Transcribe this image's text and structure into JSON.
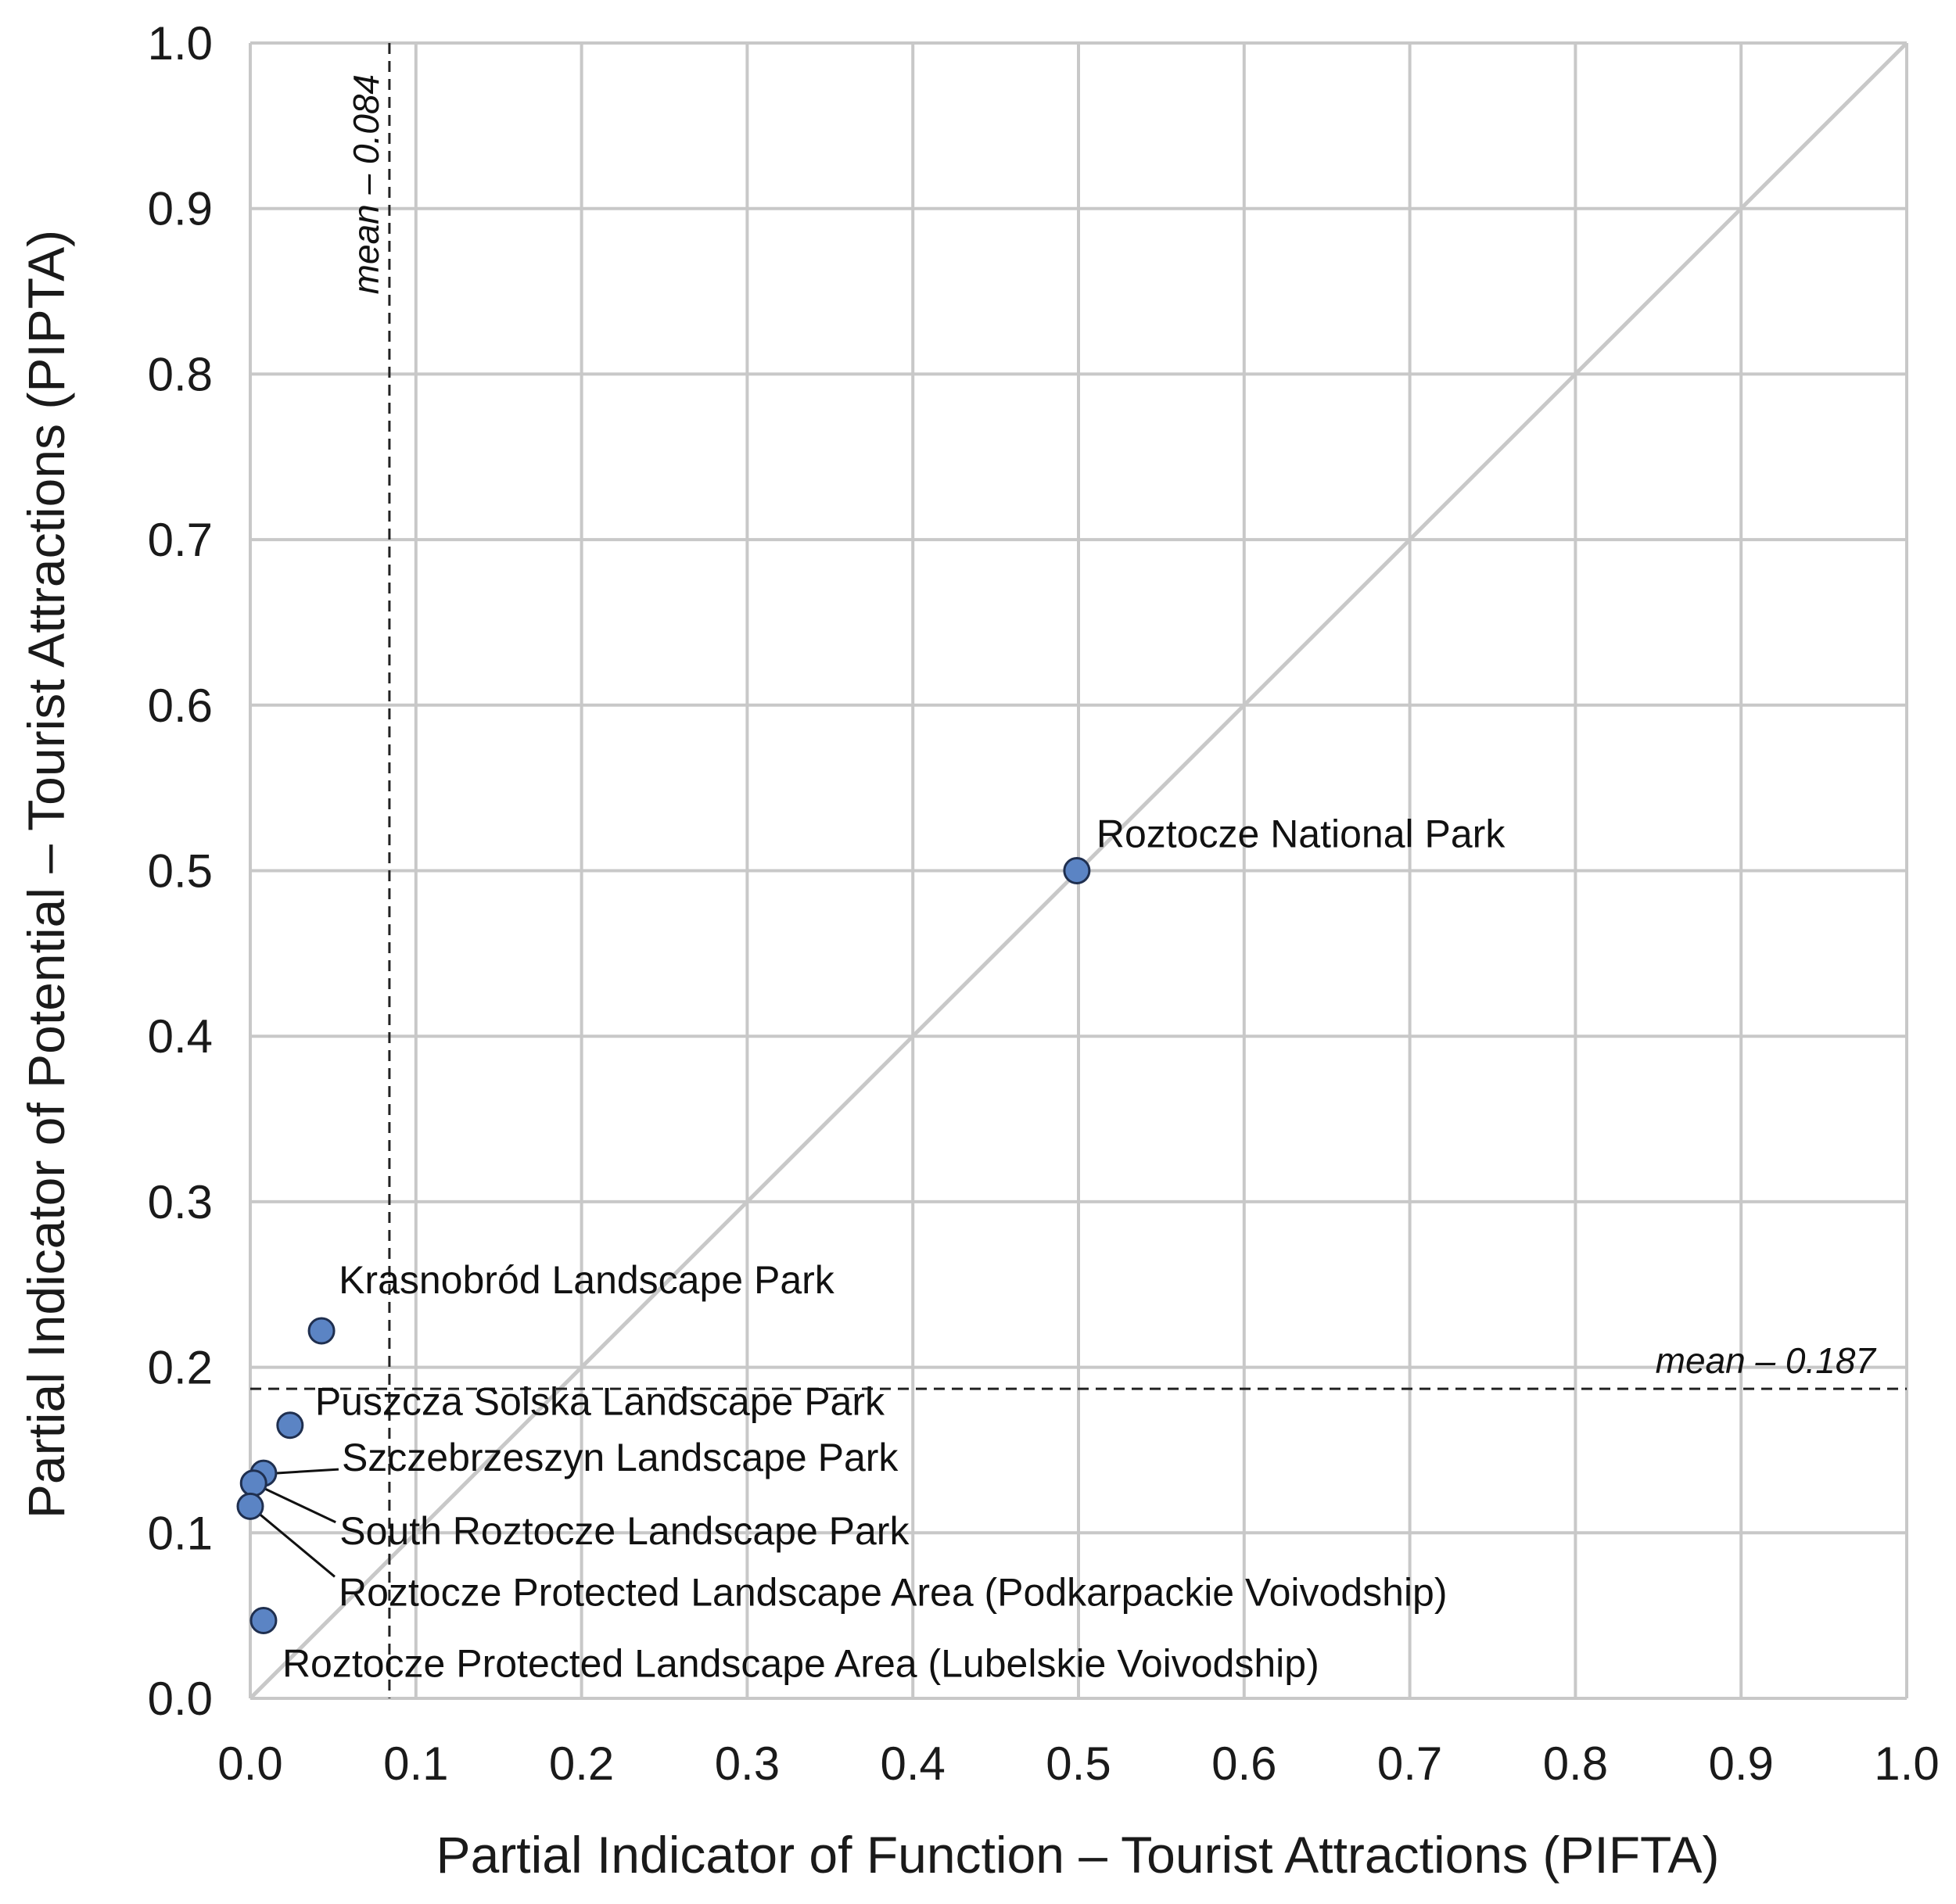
{
  "chart_data": {
    "type": "scatter",
    "xlabel": "Partial Indicator of Function – Tourist Attractions (PIFTA)",
    "ylabel": "Partial Indicator of Potential – Tourist Attractions (PIPTA)",
    "xlim": [
      0.0,
      1.0
    ],
    "ylim": [
      0.0,
      1.0
    ],
    "x_ticks": [
      "0.0",
      "0.1",
      "0.2",
      "0.3",
      "0.4",
      "0.5",
      "0.6",
      "0.7",
      "0.8",
      "0.9",
      "1.0"
    ],
    "y_ticks": [
      "0.0",
      "0.1",
      "0.2",
      "0.3",
      "0.4",
      "0.5",
      "0.6",
      "0.7",
      "0.8",
      "0.9",
      "1.0"
    ],
    "grid": true,
    "diagonal_reference": true,
    "points": [
      {
        "label": "Roztocze National Park",
        "x": 0.499,
        "y": 0.5
      },
      {
        "label": "Krasnobród Landscape Park",
        "x": 0.043,
        "y": 0.222
      },
      {
        "label": "Puszcza Solska Landscape Park",
        "x": 0.024,
        "y": 0.165
      },
      {
        "label": "Szczebrzeszyn Landscape Park",
        "x": 0.008,
        "y": 0.136
      },
      {
        "label": "South Roztocze Landscape Park",
        "x": 0.002,
        "y": 0.13
      },
      {
        "label": "Roztocze Protected Landscape Area (Podkarpackie Voivodship)",
        "x": 0.0,
        "y": 0.116
      },
      {
        "label": "Roztocze Protected Landscape Area (Lubelskie Voivodship)",
        "x": 0.008,
        "y": 0.047
      }
    ],
    "mean_lines": [
      {
        "axis": "x",
        "value": 0.084,
        "label": "mean – 0.084"
      },
      {
        "axis": "y",
        "value": 0.187,
        "label": "mean – 0.187"
      }
    ],
    "colors": {
      "point_fill": "#5b84c4",
      "point_stroke": "#1f2f4f",
      "grid": "#c8c8c8",
      "diagonal": "#c8c8c8",
      "mean_line": "#222222"
    }
  }
}
